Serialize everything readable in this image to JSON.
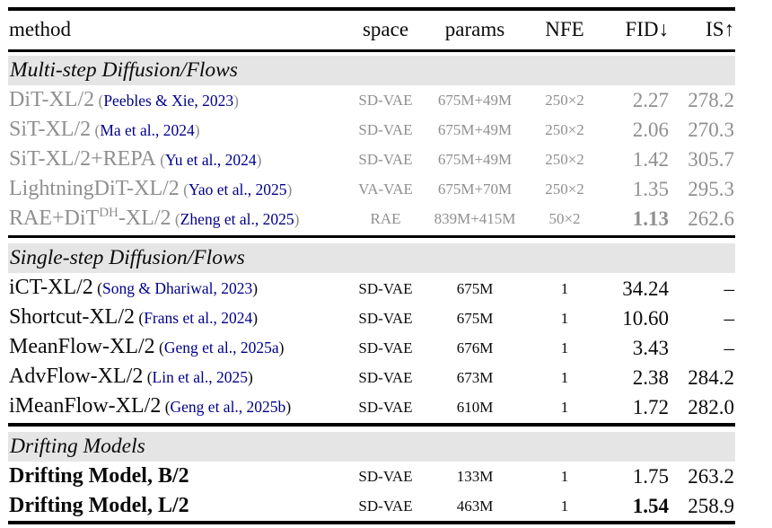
{
  "header": {
    "method": "method",
    "space": "space",
    "params": "params",
    "nfe": "NFE",
    "fid": "FID↓",
    "is": "IS↑"
  },
  "colors": {
    "citation_link": "#00008b",
    "dimmed_text": "#8f8f8f",
    "section_band": "#e5e5e5",
    "rule": "#000000"
  },
  "sections": [
    {
      "title": "Multi-step Diffusion/Flows",
      "dimmed": true,
      "rows": [
        {
          "method": "DiT-XL/2",
          "citation": "Peebles & Xie, 2023",
          "space": "SD-VAE",
          "params": "675M+49M",
          "nfe": "250×2",
          "fid": "2.27",
          "fid_bold": false,
          "is": "278.2"
        },
        {
          "method": "SiT-XL/2",
          "citation": "Ma et al., 2024",
          "space": "SD-VAE",
          "params": "675M+49M",
          "nfe": "250×2",
          "fid": "2.06",
          "fid_bold": false,
          "is": "270.3"
        },
        {
          "method": "SiT-XL/2+REPA",
          "citation": "Yu et al., 2024",
          "space": "SD-VAE",
          "params": "675M+49M",
          "nfe": "250×2",
          "fid": "1.42",
          "fid_bold": false,
          "is": "305.7"
        },
        {
          "method": "LightningDiT-XL/2",
          "citation": "Yao et al., 2025",
          "space": "VA-VAE",
          "params": "675M+70M",
          "nfe": "250×2",
          "fid": "1.35",
          "fid_bold": false,
          "is": "295.3"
        },
        {
          "method": [
            "RAE+DiT",
            {
              "sup": "DH"
            },
            "-XL/2"
          ],
          "citation": "Zheng et al., 2025",
          "space": "RAE",
          "params": "839M+415M",
          "nfe": "50×2",
          "fid": "1.13",
          "fid_bold": true,
          "is": "262.6"
        }
      ]
    },
    {
      "title": "Single-step Diffusion/Flows",
      "dimmed": false,
      "rows": [
        {
          "method": "iCT-XL/2",
          "citation": "Song & Dhariwal, 2023",
          "space": "SD-VAE",
          "params": "675M",
          "nfe": "1",
          "fid": "34.24",
          "fid_bold": false,
          "is": "–"
        },
        {
          "method": "Shortcut-XL/2",
          "citation": "Frans et al., 2024",
          "space": "SD-VAE",
          "params": "675M",
          "nfe": "1",
          "fid": "10.60",
          "fid_bold": false,
          "is": "–"
        },
        {
          "method": "MeanFlow-XL/2",
          "citation": "Geng et al., 2025a",
          "space": "SD-VAE",
          "params": "676M",
          "nfe": "1",
          "fid": "3.43",
          "fid_bold": false,
          "is": "–"
        },
        {
          "method": "AdvFlow-XL/2",
          "citation": "Lin et al., 2025",
          "space": "SD-VAE",
          "params": "673M",
          "nfe": "1",
          "fid": "2.38",
          "fid_bold": false,
          "is": "284.2"
        },
        {
          "method": "iMeanFlow-XL/2",
          "citation": "Geng et al., 2025b",
          "space": "SD-VAE",
          "params": "610M",
          "nfe": "1",
          "fid": "1.72",
          "fid_bold": false,
          "is": "282.0"
        }
      ]
    },
    {
      "title": "Drifting Models",
      "dimmed": false,
      "rows": [
        {
          "method": "Drifting Model, B/2",
          "method_bold": true,
          "space": "SD-VAE",
          "params": "133M",
          "nfe": "1",
          "fid": "1.75",
          "fid_bold": false,
          "is": "263.2"
        },
        {
          "method": "Drifting Model, L/2",
          "method_bold": true,
          "space": "SD-VAE",
          "params": "463M",
          "nfe": "1",
          "fid": "1.54",
          "fid_bold": true,
          "is": "258.9"
        }
      ]
    }
  ]
}
